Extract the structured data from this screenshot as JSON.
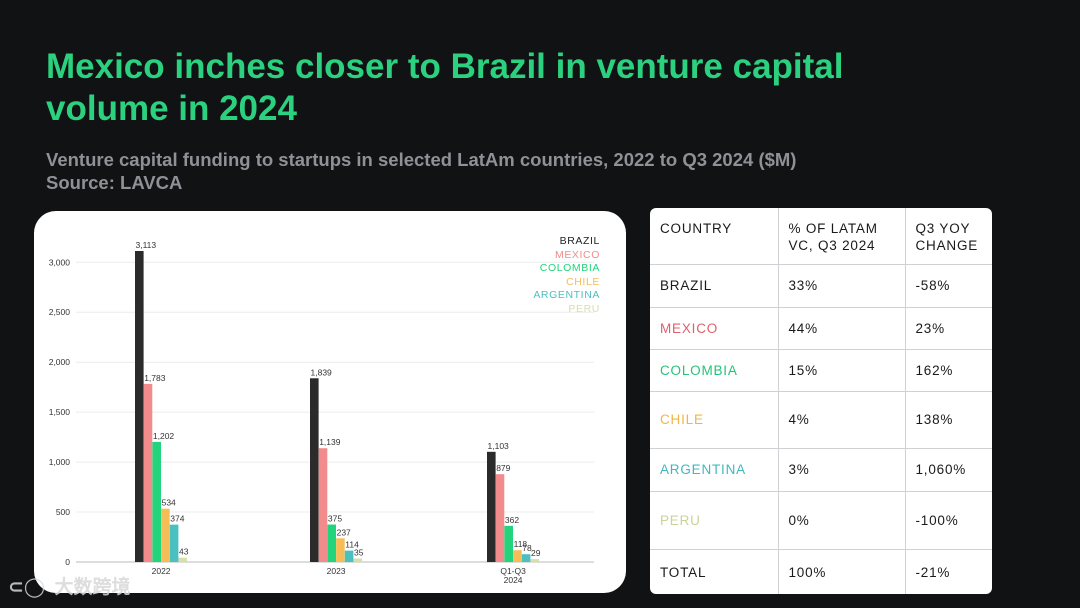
{
  "header": {
    "title": "Mexico inches closer to Brazil in venture capital volume in 2024",
    "subtitle_line1": "Venture capital funding to startups in selected LatAm countries, 2022 to Q3 2024 ($M)",
    "subtitle_line2": "Source: LAVCA"
  },
  "colors": {
    "background": "#101214",
    "title": "#2bd17e",
    "BRAZIL": "#2b2b2b",
    "MEXICO": "#f28b8b",
    "COLOMBIA": "#22d47c",
    "CHILE": "#f5bd57",
    "ARGENTINA": "#4bc0c0",
    "PERU": "#d8e0a8"
  },
  "chart_data": {
    "type": "bar",
    "title": "",
    "xlabel": "",
    "ylabel": "",
    "ylim": [
      0,
      3113
    ],
    "grid": true,
    "legend": "top-right",
    "categories": [
      "2022",
      "2023",
      "Q1-Q3 2024"
    ],
    "category_lines": [
      [
        "2022"
      ],
      [
        "2023"
      ],
      [
        "Q1-Q3",
        "2024"
      ]
    ],
    "yticks": [
      0,
      500,
      1000,
      1500,
      2000,
      2500,
      3000
    ],
    "ytick_labels": [
      "0",
      "500",
      "1,000",
      "1,500",
      "2,000",
      "2,500",
      "3,000"
    ],
    "series": [
      {
        "name": "BRAZIL",
        "color": "#2b2b2b",
        "values": [
          3113,
          1839,
          1103
        ],
        "labels": [
          "3,113",
          "1,839",
          "1,103"
        ]
      },
      {
        "name": "MEXICO",
        "color": "#f28b8b",
        "values": [
          1783,
          1139,
          879
        ],
        "labels": [
          "1,783",
          "1,139",
          "879"
        ]
      },
      {
        "name": "COLOMBIA",
        "color": "#22d47c",
        "values": [
          1202,
          375,
          362
        ],
        "labels": [
          "1,202",
          "375",
          "362"
        ]
      },
      {
        "name": "CHILE",
        "color": "#f5bd57",
        "values": [
          534,
          237,
          118
        ],
        "labels": [
          "534",
          "237",
          "118"
        ]
      },
      {
        "name": "ARGENTINA",
        "color": "#4bc0c0",
        "values": [
          374,
          114,
          78
        ],
        "labels": [
          "374",
          "114",
          "78"
        ]
      },
      {
        "name": "PERU",
        "color": "#d8e0a8",
        "values": [
          43,
          35,
          29
        ],
        "labels": [
          "43",
          "35",
          "29"
        ]
      }
    ]
  },
  "table": {
    "headers": [
      [
        "COUNTRY"
      ],
      [
        "% OF LATAM",
        "VC, Q3 2024"
      ],
      [
        "Q3 YOY",
        "CHANGE"
      ]
    ],
    "rows": [
      {
        "country": "BRAZIL",
        "color": "#1a1a1a",
        "share": "33%",
        "yoy": "-58%"
      },
      {
        "country": "MEXICO",
        "color": "#e0606a",
        "share": "44%",
        "yoy": "23%"
      },
      {
        "country": "COLOMBIA",
        "color": "#22c478",
        "share": "15%",
        "yoy": "162%"
      },
      {
        "country": "CHILE",
        "color": "#f0b545",
        "share": "4%",
        "yoy": "138%"
      },
      {
        "country": "ARGENTINA",
        "color": "#3fb8c0",
        "share": "3%",
        "yoy": "1,060%"
      },
      {
        "country": "PERU",
        "color": "#c8d49a",
        "share": "0%",
        "yoy": "-100%"
      },
      {
        "country": "TOTAL",
        "color": "#1a1a1a",
        "share": "100%",
        "yoy": "-21%"
      }
    ]
  },
  "watermark": {
    "text": "大数跨境"
  }
}
